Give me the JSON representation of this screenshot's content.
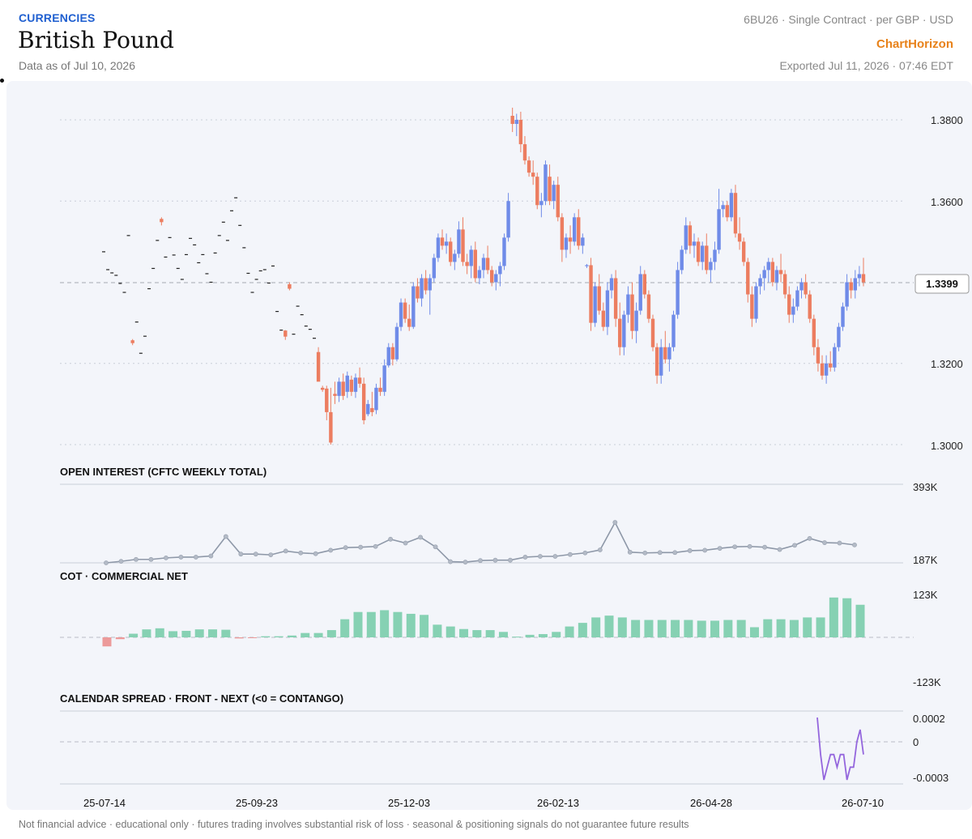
{
  "header": {
    "category": "CURRENCIES",
    "title": "British Pound",
    "as_of": "Data as of Jul 10, 2026",
    "contract": "6BU26 · Single Contract · per GBP · USD",
    "brand": "ChartHorizon",
    "exported": "Exported Jul 11, 2026 · 07:46 EDT"
  },
  "footer": {
    "disclaimer": "Not financial advice · educational only · futures trading involves substantial risk of loss · seasonal & positioning signals do not guarantee future results"
  },
  "colors": {
    "up": "#6f8be8",
    "down": "#ec7d60",
    "oi_line": "#8e98a8",
    "cot_pos": "#86d1b3",
    "cot_neg": "#ec9a9a",
    "spread_line": "#9466dd"
  },
  "chart_data": [
    {
      "type": "candlestick",
      "name": "price",
      "yticks": [
        "1.3800",
        "1.3600",
        "1.3200",
        "1.3000"
      ],
      "ylim": [
        1.3,
        1.385
      ],
      "last_value_label": "1.3399",
      "last_value": 1.3399,
      "xticks": [
        "25-07-14",
        "25-09-23",
        "25-12-03",
        "26-02-13",
        "26-04-28",
        "26-07-10"
      ],
      "series": [
        [
          1.3475,
          1.3475,
          1.3473,
          1.3473
        ],
        [
          1.3431,
          1.3431,
          1.3429,
          1.3429
        ],
        [
          1.3423,
          1.3423,
          1.3421,
          1.3421
        ],
        [
          1.3417,
          1.3417,
          1.3415,
          1.3415
        ],
        [
          1.3397,
          1.3397,
          1.3395,
          1.3395
        ],
        [
          1.3375,
          1.3375,
          1.3373,
          1.3373
        ],
        [
          1.3515,
          1.3515,
          1.3513,
          1.3513
        ],
        [
          1.3257,
          1.326,
          1.3245,
          1.325
        ],
        [
          1.3302,
          1.3302,
          1.33,
          1.33
        ],
        [
          1.3225,
          1.3225,
          1.3223,
          1.3223
        ],
        [
          1.3267,
          1.3267,
          1.3265,
          1.3265
        ],
        [
          1.3384,
          1.3384,
          1.3382,
          1.3382
        ],
        [
          1.3434,
          1.3434,
          1.3432,
          1.3432
        ],
        [
          1.3503,
          1.3503,
          1.3501,
          1.3501
        ],
        [
          1.3556,
          1.356,
          1.354,
          1.3548
        ],
        [
          1.3462,
          1.3462,
          1.346,
          1.346
        ],
        [
          1.351,
          1.351,
          1.3508,
          1.3508
        ],
        [
          1.3467,
          1.3467,
          1.3465,
          1.3465
        ],
        [
          1.3434,
          1.3434,
          1.3432,
          1.3432
        ],
        [
          1.3407,
          1.3407,
          1.3405,
          1.3405
        ],
        [
          1.3468,
          1.3468,
          1.3466,
          1.3466
        ],
        [
          1.3508,
          1.3508,
          1.3506,
          1.3506
        ],
        [
          1.3492,
          1.3492,
          1.349,
          1.349
        ],
        [
          1.3448,
          1.3448,
          1.3446,
          1.3446
        ],
        [
          1.3468,
          1.3468,
          1.3466,
          1.3466
        ],
        [
          1.3421,
          1.3421,
          1.3419,
          1.3419
        ],
        [
          1.34,
          1.34,
          1.3398,
          1.3398
        ],
        [
          1.3472,
          1.3472,
          1.347,
          1.347
        ],
        [
          1.3515,
          1.3515,
          1.3513,
          1.3513
        ],
        [
          1.3548,
          1.3548,
          1.3546,
          1.3546
        ],
        [
          1.3503,
          1.3503,
          1.3501,
          1.3501
        ],
        [
          1.3576,
          1.3576,
          1.3574,
          1.3574
        ],
        [
          1.3608,
          1.3608,
          1.3606,
          1.3606
        ],
        [
          1.354,
          1.354,
          1.3538,
          1.3538
        ],
        [
          1.3485,
          1.3485,
          1.3483,
          1.3483
        ],
        [
          1.3422,
          1.3422,
          1.342,
          1.342
        ],
        [
          1.3375,
          1.3375,
          1.3373,
          1.3373
        ],
        [
          1.3407,
          1.3407,
          1.3405,
          1.3405
        ],
        [
          1.3428,
          1.3428,
          1.3426,
          1.3426
        ],
        [
          1.3431,
          1.3431,
          1.3429,
          1.3429
        ],
        [
          1.3398,
          1.3398,
          1.3396,
          1.3396
        ],
        [
          1.344,
          1.344,
          1.3438,
          1.3438
        ],
        [
          1.3328,
          1.3328,
          1.3326,
          1.3326
        ],
        [
          1.3282,
          1.3282,
          1.328,
          1.328
        ],
        [
          1.3281,
          1.3282,
          1.3258,
          1.3266
        ],
        [
          1.3395,
          1.34,
          1.338,
          1.3384
        ],
        [
          1.3272,
          1.3272,
          1.327,
          1.327
        ],
        [
          1.3341,
          1.3341,
          1.3339,
          1.3339
        ],
        [
          1.332,
          1.332,
          1.3318,
          1.3318
        ],
        [
          1.3292,
          1.3292,
          1.329,
          1.329
        ],
        [
          1.3284,
          1.3284,
          1.3282,
          1.3282
        ],
        [
          1.3262,
          1.3262,
          1.326,
          1.326
        ],
        [
          1.3228,
          1.324,
          1.319,
          1.3155
        ],
        [
          1.314,
          1.3145,
          1.313,
          1.3135
        ],
        [
          1.3138,
          1.3145,
          1.306,
          1.308
        ],
        [
          1.308,
          1.314,
          1.3,
          1.3005
        ],
        [
          1.3125,
          1.3155,
          1.31,
          1.312
        ],
        [
          1.312,
          1.3165,
          1.3105,
          1.3155
        ],
        [
          1.3155,
          1.3175,
          1.311,
          1.312
        ],
        [
          1.313,
          1.318,
          1.3115,
          1.317
        ],
        [
          1.316,
          1.317,
          1.312,
          1.313
        ],
        [
          1.313,
          1.3175,
          1.3115,
          1.3165
        ],
        [
          1.3165,
          1.319,
          1.314,
          1.315
        ],
        [
          1.315,
          1.3165,
          1.305,
          1.306
        ],
        [
          1.3075,
          1.311,
          1.307,
          1.31
        ],
        [
          1.309,
          1.313,
          1.307,
          1.308
        ],
        [
          1.3085,
          1.315,
          1.3075,
          1.314
        ],
        [
          1.314,
          1.3165,
          1.312,
          1.313
        ],
        [
          1.313,
          1.321,
          1.312,
          1.3195
        ],
        [
          1.3195,
          1.325,
          1.319,
          1.324
        ],
        [
          1.324,
          1.325,
          1.3195,
          1.321
        ],
        [
          1.321,
          1.33,
          1.3205,
          1.329
        ],
        [
          1.329,
          1.336,
          1.328,
          1.335
        ],
        [
          1.335,
          1.336,
          1.33,
          1.331
        ],
        [
          1.331,
          1.3345,
          1.328,
          1.329
        ],
        [
          1.329,
          1.34,
          1.3285,
          1.339
        ],
        [
          1.339,
          1.341,
          1.335,
          1.336
        ],
        [
          1.336,
          1.342,
          1.334,
          1.341
        ],
        [
          1.341,
          1.343,
          1.337,
          1.338
        ],
        [
          1.338,
          1.342,
          1.332,
          1.341
        ],
        [
          1.341,
          1.347,
          1.34,
          1.346
        ],
        [
          1.346,
          1.352,
          1.345,
          1.351
        ],
        [
          1.351,
          1.353,
          1.348,
          1.349
        ],
        [
          1.349,
          1.352,
          1.347,
          1.35
        ],
        [
          1.35,
          1.351,
          1.344,
          1.345
        ],
        [
          1.345,
          1.348,
          1.343,
          1.347
        ],
        [
          1.347,
          1.355,
          1.346,
          1.353
        ],
        [
          1.353,
          1.356,
          1.344,
          1.345
        ],
        [
          1.345,
          1.347,
          1.342,
          1.344
        ],
        [
          1.344,
          1.349,
          1.341,
          1.348
        ],
        [
          1.348,
          1.35,
          1.34,
          1.341
        ],
        [
          1.341,
          1.344,
          1.3395,
          1.343
        ],
        [
          1.343,
          1.347,
          1.341,
          1.346
        ],
        [
          1.346,
          1.349,
          1.342,
          1.343
        ],
        [
          1.343,
          1.344,
          1.339,
          1.34
        ],
        [
          1.34,
          1.343,
          1.338,
          1.342
        ],
        [
          1.342,
          1.345,
          1.339,
          1.344
        ],
        [
          1.344,
          1.352,
          1.343,
          1.351
        ],
        [
          1.351,
          1.362,
          1.35,
          1.36
        ],
        [
          1.381,
          1.383,
          1.377,
          1.379
        ],
        [
          1.379,
          1.3815,
          1.376,
          1.38
        ],
        [
          1.38,
          1.382,
          1.372,
          1.374
        ],
        [
          1.374,
          1.376,
          1.369,
          1.37
        ],
        [
          1.37,
          1.371,
          1.366,
          1.367
        ],
        [
          1.367,
          1.37,
          1.364,
          1.366
        ],
        [
          1.366,
          1.367,
          1.358,
          1.359
        ],
        [
          1.359,
          1.362,
          1.356,
          1.36
        ],
        [
          1.36,
          1.37,
          1.359,
          1.369
        ],
        [
          1.366,
          1.369,
          1.359,
          1.36
        ],
        [
          1.36,
          1.365,
          1.358,
          1.364
        ],
        [
          1.364,
          1.366,
          1.355,
          1.356
        ],
        [
          1.356,
          1.357,
          1.345,
          1.348
        ],
        [
          1.348,
          1.352,
          1.346,
          1.351
        ],
        [
          1.351,
          1.354,
          1.347,
          1.35
        ],
        [
          1.35,
          1.357,
          1.349,
          1.356
        ],
        [
          1.356,
          1.358,
          1.348,
          1.349
        ],
        [
          1.349,
          1.352,
          1.347,
          1.351
        ],
        [
          1.344,
          1.3445,
          1.3435,
          1.3442
        ],
        [
          1.3442,
          1.346,
          1.328,
          1.33
        ],
        [
          1.33,
          1.34,
          1.329,
          1.339
        ],
        [
          1.339,
          1.342,
          1.332,
          1.333
        ],
        [
          1.333,
          1.335,
          1.328,
          1.329
        ],
        [
          1.329,
          1.34,
          1.327,
          1.338
        ],
        [
          1.338,
          1.342,
          1.336,
          1.341
        ],
        [
          1.341,
          1.343,
          1.329,
          1.331
        ],
        [
          1.331,
          1.335,
          1.322,
          1.324
        ],
        [
          1.324,
          1.333,
          1.322,
          1.332
        ],
        [
          1.332,
          1.339,
          1.33,
          1.337
        ],
        [
          1.337,
          1.34,
          1.326,
          1.328
        ],
        [
          1.328,
          1.335,
          1.325,
          1.333
        ],
        [
          1.333,
          1.344,
          1.332,
          1.342
        ],
        [
          1.342,
          1.343,
          1.336,
          1.337
        ],
        [
          1.337,
          1.338,
          1.33,
          1.331
        ],
        [
          1.331,
          1.332,
          1.323,
          1.324
        ],
        [
          1.324,
          1.325,
          1.315,
          1.317
        ],
        [
          1.317,
          1.326,
          1.315,
          1.324
        ],
        [
          1.324,
          1.328,
          1.32,
          1.321
        ],
        [
          1.321,
          1.325,
          1.318,
          1.324
        ],
        [
          1.324,
          1.333,
          1.323,
          1.332
        ],
        [
          1.332,
          1.345,
          1.331,
          1.343
        ],
        [
          1.343,
          1.349,
          1.342,
          1.348
        ],
        [
          1.348,
          1.356,
          1.347,
          1.354
        ],
        [
          1.354,
          1.355,
          1.347,
          1.349
        ],
        [
          1.349,
          1.352,
          1.346,
          1.35
        ],
        [
          1.35,
          1.351,
          1.344,
          1.345
        ],
        [
          1.345,
          1.35,
          1.343,
          1.349
        ],
        [
          1.349,
          1.352,
          1.342,
          1.343
        ],
        [
          1.343,
          1.346,
          1.34,
          1.345
        ],
        [
          1.345,
          1.35,
          1.343,
          1.348
        ],
        [
          1.348,
          1.363,
          1.347,
          1.358
        ],
        [
          1.358,
          1.36,
          1.356,
          1.359
        ],
        [
          1.359,
          1.36,
          1.355,
          1.356
        ],
        [
          1.356,
          1.363,
          1.355,
          1.362
        ],
        [
          1.362,
          1.364,
          1.351,
          1.352
        ],
        [
          1.352,
          1.356,
          1.348,
          1.35
        ],
        [
          1.35,
          1.351,
          1.344,
          1.345
        ],
        [
          1.345,
          1.346,
          1.335,
          1.337
        ],
        [
          1.337,
          1.339,
          1.329,
          1.331
        ],
        [
          1.331,
          1.34,
          1.33,
          1.339
        ],
        [
          1.339,
          1.342,
          1.337,
          1.341
        ],
        [
          1.341,
          1.344,
          1.338,
          1.343
        ],
        [
          1.343,
          1.346,
          1.34,
          1.345
        ],
        [
          1.345,
          1.346,
          1.339,
          1.34
        ],
        [
          1.34,
          1.344,
          1.338,
          1.343
        ],
        [
          1.343,
          1.347,
          1.34,
          1.342
        ],
        [
          1.342,
          1.343,
          1.336,
          1.337
        ],
        [
          1.337,
          1.339,
          1.33,
          1.332
        ],
        [
          1.332,
          1.336,
          1.33,
          1.334
        ],
        [
          1.334,
          1.339,
          1.333,
          1.338
        ],
        [
          1.338,
          1.341,
          1.336,
          1.34
        ],
        [
          1.34,
          1.342,
          1.336,
          1.337
        ],
        [
          1.337,
          1.338,
          1.33,
          1.331
        ],
        [
          1.331,
          1.332,
          1.322,
          1.324
        ],
        [
          1.324,
          1.326,
          1.318,
          1.32
        ],
        [
          1.32,
          1.322,
          1.316,
          1.317
        ],
        [
          1.317,
          1.322,
          1.315,
          1.32
        ],
        [
          1.32,
          1.323,
          1.318,
          1.319
        ],
        [
          1.319,
          1.325,
          1.318,
          1.324
        ],
        [
          1.324,
          1.33,
          1.323,
          1.329
        ],
        [
          1.329,
          1.335,
          1.328,
          1.334
        ],
        [
          1.334,
          1.342,
          1.333,
          1.34
        ],
        [
          1.34,
          1.341,
          1.336,
          1.338
        ],
        [
          1.338,
          1.343,
          1.336,
          1.341
        ],
        [
          1.341,
          1.344,
          1.339,
          1.342
        ],
        [
          1.342,
          1.346,
          1.339,
          1.34
        ]
      ]
    },
    {
      "type": "line",
      "name": "open_interest",
      "title": "OPEN INTEREST (CFTC WEEKLY TOTAL)",
      "ytick_labels": [
        "393K",
        "187K"
      ],
      "ylim": [
        187,
        393
      ],
      "values": [
        187,
        191,
        196,
        196,
        200,
        202,
        202,
        205,
        256,
        210,
        210,
        208,
        218,
        213,
        211,
        220,
        227,
        228,
        230,
        249,
        239,
        254,
        229,
        190,
        189,
        193,
        194,
        194,
        202,
        204,
        204,
        209,
        213,
        221,
        293,
        215,
        213,
        214,
        214,
        219,
        220,
        225,
        229,
        230,
        228,
        222,
        233,
        251,
        240,
        239,
        234
      ]
    },
    {
      "type": "bar",
      "name": "cot_commercial_net",
      "title": "COT · COMMERCIAL NET",
      "ytick_labels": [
        "123K",
        "-123K"
      ],
      "ylim": [
        -123,
        123
      ],
      "values": [
        -25,
        -5,
        10,
        22,
        25,
        17,
        18,
        22,
        22,
        21,
        -3,
        -2,
        3,
        3,
        5,
        12,
        12,
        20,
        50,
        70,
        70,
        75,
        70,
        65,
        62,
        35,
        30,
        23,
        20,
        20,
        15,
        2,
        7,
        9,
        15,
        30,
        40,
        55,
        60,
        55,
        48,
        48,
        48,
        48,
        48,
        46,
        46,
        48,
        48,
        28,
        50,
        50,
        48,
        55,
        55,
        110,
        108,
        90
      ]
    },
    {
      "type": "line",
      "name": "calendar_spread",
      "title": "CALENDAR SPREAD · FRONT - NEXT (<0 = CONTANGO)",
      "ytick_labels": [
        "0.0002",
        "0",
        "-0.0003"
      ],
      "ylim": [
        -0.0003,
        0.0002
      ],
      "values": [
        0.0002,
        -0.0001,
        -0.0003,
        -0.0002,
        -0.0001,
        -0.0001,
        -0.0002,
        -0.0001,
        -0.0001,
        -0.0003,
        -0.0002,
        -0.0002,
        0.0,
        0.0001,
        -0.0001
      ]
    }
  ]
}
